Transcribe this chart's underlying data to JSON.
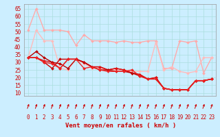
{
  "xlabel": "Vent moyen/en rafales ( km/h )",
  "bg_color": "#cceeff",
  "grid_color": "#aadddd",
  "ylim": [
    8,
    68
  ],
  "xlim": [
    -0.5,
    23.5
  ],
  "yticks": [
    10,
    15,
    20,
    25,
    30,
    35,
    40,
    45,
    50,
    55,
    60,
    65
  ],
  "xticks": [
    0,
    1,
    2,
    3,
    4,
    5,
    6,
    7,
    8,
    9,
    10,
    11,
    12,
    13,
    14,
    15,
    16,
    17,
    18,
    19,
    20,
    21,
    22,
    23
  ],
  "lines": [
    {
      "color": "#ffaaaa",
      "lw": 1.0,
      "x": [
        0,
        1,
        2,
        3,
        4,
        5,
        6,
        7,
        8,
        9,
        10,
        11,
        12,
        13,
        14,
        15,
        16,
        17,
        18,
        19,
        20,
        21,
        22,
        23
      ],
      "y": [
        51,
        65,
        51,
        51,
        51,
        50,
        41,
        48,
        44,
        44,
        44,
        43,
        44,
        43,
        43,
        44,
        44,
        26,
        26,
        44,
        43,
        44,
        23,
        33
      ]
    },
    {
      "color": "#ffbbbb",
      "lw": 1.0,
      "x": [
        0,
        1,
        2,
        3,
        4,
        5,
        6,
        7,
        8,
        9,
        10,
        11,
        12,
        13,
        14,
        15,
        16,
        17,
        18,
        19,
        20,
        21,
        22,
        23
      ],
      "y": [
        33,
        51,
        44,
        44,
        26,
        25,
        32,
        29,
        26,
        26,
        25,
        25,
        25,
        24,
        24,
        24,
        43,
        25,
        27,
        24,
        23,
        24,
        33,
        33
      ]
    },
    {
      "color": "#cc0000",
      "lw": 1.0,
      "x": [
        0,
        1,
        2,
        3,
        4,
        5,
        6,
        7,
        8,
        9,
        10,
        11,
        12,
        13,
        14,
        15,
        16,
        17,
        18,
        19,
        20,
        21,
        22,
        23
      ],
      "y": [
        33,
        33,
        30,
        26,
        32,
        32,
        32,
        30,
        27,
        27,
        25,
        26,
        25,
        23,
        22,
        19,
        20,
        13,
        12,
        12,
        12,
        18,
        18,
        19
      ]
    },
    {
      "color": "#dd1111",
      "lw": 1.0,
      "x": [
        0,
        1,
        2,
        3,
        4,
        5,
        6,
        7,
        8,
        9,
        10,
        11,
        12,
        13,
        14,
        15,
        16,
        17,
        18,
        19,
        20,
        21,
        22,
        23
      ],
      "y": [
        33,
        33,
        31,
        30,
        26,
        32,
        32,
        30,
        27,
        27,
        25,
        26,
        25,
        23,
        22,
        19,
        20,
        13,
        12,
        12,
        12,
        18,
        18,
        19
      ]
    },
    {
      "color": "#bb0000",
      "lw": 1.0,
      "x": [
        0,
        1,
        2,
        3,
        4,
        5,
        6,
        7,
        8,
        9,
        10,
        11,
        12,
        13,
        14,
        15,
        16,
        17,
        18,
        19,
        20,
        21,
        22,
        23
      ],
      "y": [
        33,
        37,
        33,
        30,
        29,
        26,
        32,
        30,
        27,
        25,
        25,
        24,
        24,
        23,
        21,
        19,
        19,
        13,
        12,
        12,
        12,
        18,
        18,
        19
      ]
    },
    {
      "color": "#ee2222",
      "lw": 1.0,
      "x": [
        0,
        1,
        2,
        3,
        4,
        5,
        6,
        7,
        8,
        9,
        10,
        11,
        12,
        13,
        14,
        15,
        16,
        17,
        18,
        19,
        20,
        21,
        22,
        23
      ],
      "y": [
        33,
        33,
        30,
        29,
        26,
        32,
        32,
        26,
        27,
        25,
        24,
        24,
        24,
        25,
        21,
        19,
        19,
        13,
        12,
        12,
        12,
        18,
        18,
        19
      ]
    }
  ],
  "arrow_color": "#cc0000",
  "marker": "D",
  "markersize": 2.0,
  "xlabel_color": "#cc0000",
  "xlabel_fontsize": 6.5,
  "tick_fontsize": 5.5,
  "tick_color": "#cc0000"
}
